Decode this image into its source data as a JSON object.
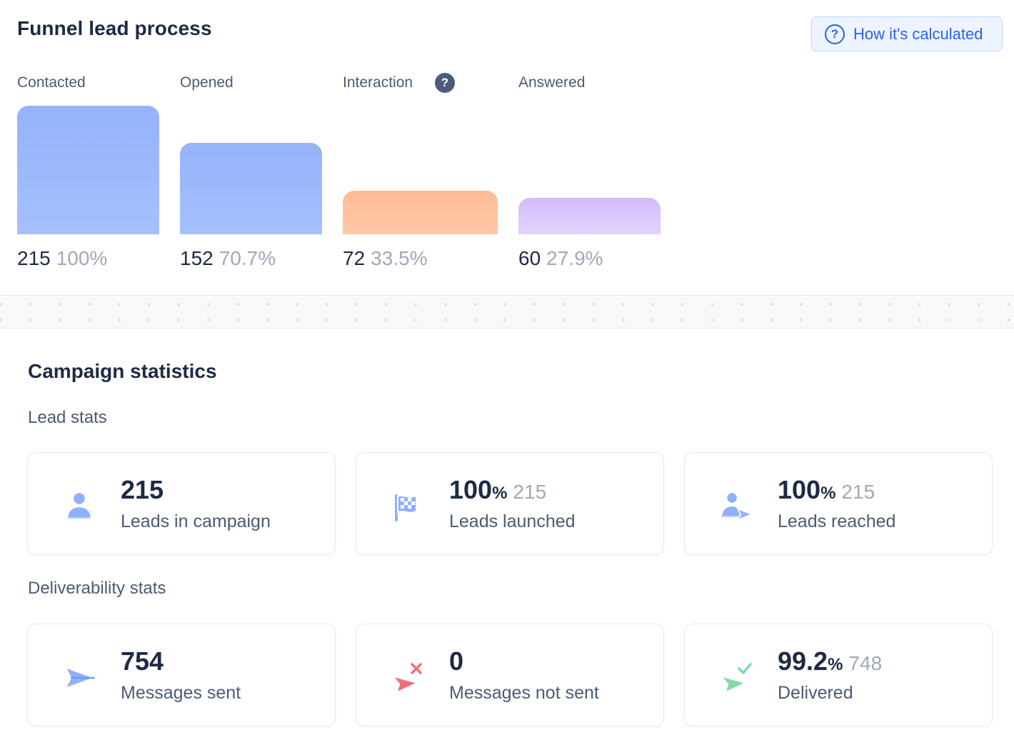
{
  "funnel": {
    "title": "Funnel lead process",
    "how_button_label": "How it's calculated",
    "help_icon_glyph": "?",
    "stages": [
      {
        "label": "Contacted",
        "count": "215",
        "percent": "100%",
        "percent_value": 100,
        "color": "#9bb7fc"
      },
      {
        "label": "Opened",
        "count": "152",
        "percent": "70.7%",
        "percent_value": 70.7,
        "color": "#9bb7fc"
      },
      {
        "label": "Interaction",
        "count": "72",
        "percent": "33.5%",
        "percent_value": 33.5,
        "color": "#fec19d"
      },
      {
        "label": "Answered",
        "count": "60",
        "percent": "27.9%",
        "percent_value": 27.9,
        "color": "#dbc7fc"
      }
    ]
  },
  "campaign": {
    "title": "Campaign statistics",
    "lead_stats": {
      "title": "Lead stats",
      "cards": [
        {
          "icon": "user-icon",
          "value": "215",
          "unit": "",
          "sub": "",
          "label": "Leads in campaign"
        },
        {
          "icon": "checkered-flag-icon",
          "value": "100",
          "unit": "%",
          "sub": "215",
          "label": "Leads launched"
        },
        {
          "icon": "user-send-icon",
          "value": "100",
          "unit": "%",
          "sub": "215",
          "label": "Leads reached"
        }
      ]
    },
    "deliverability_stats": {
      "title": "Deliverability stats",
      "cards": [
        {
          "icon": "paper-plane-icon",
          "value": "754",
          "unit": "",
          "sub": "",
          "label": "Messages sent"
        },
        {
          "icon": "paper-plane-failed-icon",
          "value": "0",
          "unit": "",
          "sub": "",
          "label": "Messages not sent"
        },
        {
          "icon": "paper-plane-delivered-icon",
          "value": "99.2",
          "unit": "%",
          "sub": "748",
          "label": "Delivered"
        }
      ]
    }
  },
  "colors": {
    "accent": "#2563eb",
    "text_primary": "#1e2a44",
    "text_secondary": "#4b5a75",
    "text_muted": "#a0a8b8"
  }
}
